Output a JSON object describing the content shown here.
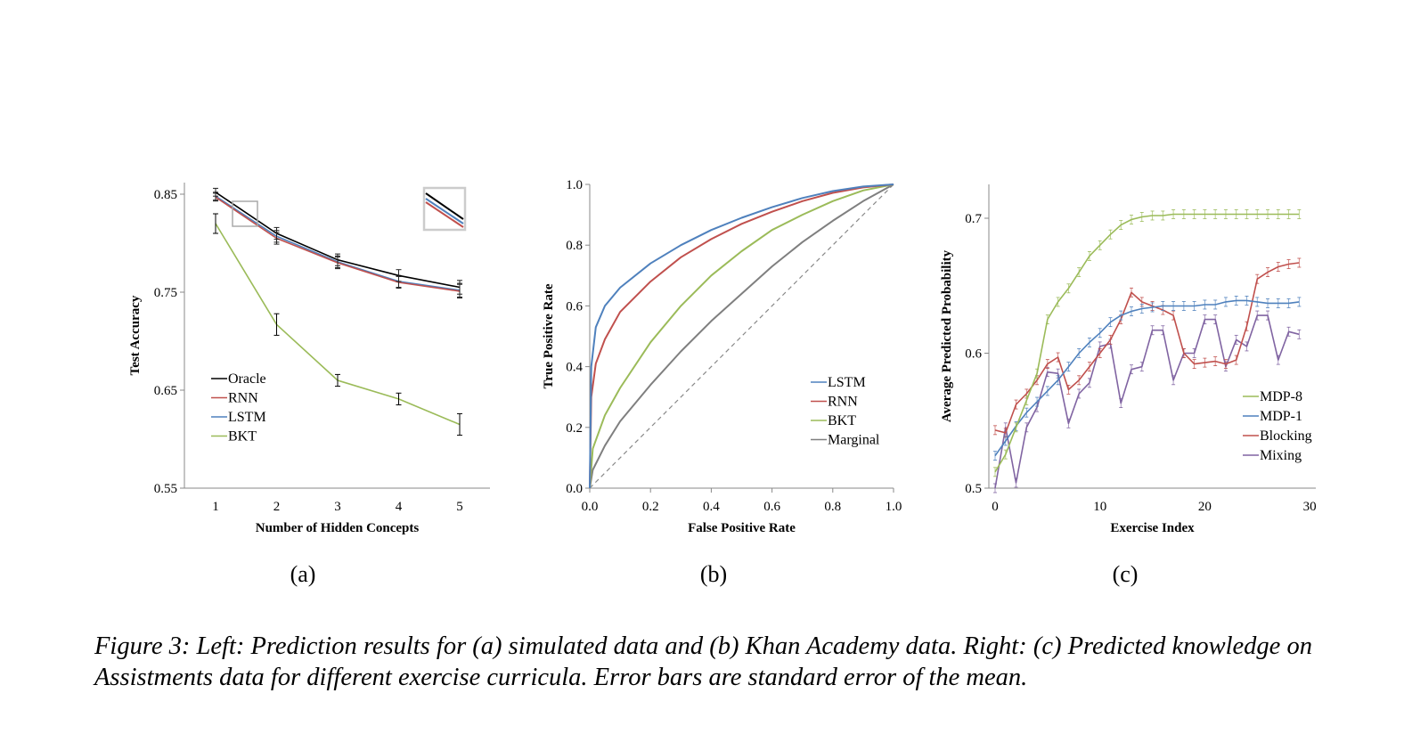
{
  "caption": "Figure 3: Left: Prediction results for (a) simulated data and (b) Khan Academy data. Right: (c) Predicted knowledge on Assistments data for different exercise curricula. Error bars are standard error of the mean.",
  "colors": {
    "Oracle": "#000000",
    "RNN": "#c0504d",
    "LSTM": "#4f81bd",
    "BKT": "#9bbb59",
    "Marginal": "#7f7f7f",
    "MDP-8": "#9bbb59",
    "MDP-1": "#4f81bd",
    "Blocking": "#c0504d",
    "Mixing": "#8064a2"
  },
  "chart_data": [
    {
      "type": "line",
      "panel_label": "(a)",
      "xlabel": "Number of Hidden Concepts",
      "ylabel": "Test Accuracy",
      "x": [
        1,
        2,
        3,
        4,
        5
      ],
      "xticks": [
        "1",
        "2",
        "3",
        "4",
        "5"
      ],
      "yticks": [
        "0.55",
        "0.65",
        "0.75",
        "0.85"
      ],
      "ylim": [
        0.55,
        0.86
      ],
      "legend_position": "bottom-left",
      "series": [
        {
          "name": "Oracle",
          "values": [
            0.852,
            0.81,
            0.783,
            0.767,
            0.755
          ],
          "err": [
            0.004,
            0.006,
            0.006,
            0.006,
            0.007
          ]
        },
        {
          "name": "RNN",
          "values": [
            0.847,
            0.805,
            0.78,
            0.76,
            0.751
          ],
          "err": [
            0.004,
            0.006,
            0.006,
            0.006,
            0.007
          ]
        },
        {
          "name": "LSTM",
          "values": [
            0.848,
            0.807,
            0.781,
            0.761,
            0.752
          ],
          "err": [
            0.004,
            0.006,
            0.006,
            0.006,
            0.007
          ]
        },
        {
          "name": "BKT",
          "values": [
            0.82,
            0.717,
            0.66,
            0.641,
            0.615
          ],
          "err": [
            0.01,
            0.011,
            0.006,
            0.006,
            0.011
          ]
        }
      ]
    },
    {
      "type": "line",
      "panel_label": "(b)",
      "xlabel": "False Positive Rate",
      "ylabel": "True Positive Rate",
      "xticks": [
        "0.0",
        "0.2",
        "0.4",
        "0.6",
        "0.8",
        "1.0"
      ],
      "yticks": [
        "0.0",
        "0.2",
        "0.4",
        "0.6",
        "0.8",
        "1.0"
      ],
      "xlim": [
        0,
        1
      ],
      "ylim": [
        0,
        1
      ],
      "legend_position": "bottom-right",
      "series": [
        {
          "name": "LSTM",
          "x": [
            0,
            0.005,
            0.02,
            0.05,
            0.1,
            0.2,
            0.3,
            0.4,
            0.5,
            0.6,
            0.7,
            0.8,
            0.9,
            1.0
          ],
          "values": [
            0,
            0.4,
            0.53,
            0.6,
            0.66,
            0.74,
            0.8,
            0.85,
            0.89,
            0.925,
            0.955,
            0.978,
            0.993,
            1.0
          ]
        },
        {
          "name": "RNN",
          "x": [
            0,
            0.005,
            0.02,
            0.05,
            0.1,
            0.2,
            0.3,
            0.4,
            0.5,
            0.6,
            0.7,
            0.8,
            0.9,
            1.0
          ],
          "values": [
            0,
            0.3,
            0.41,
            0.49,
            0.58,
            0.68,
            0.76,
            0.82,
            0.87,
            0.91,
            0.945,
            0.972,
            0.99,
            1.0
          ]
        },
        {
          "name": "BKT",
          "x": [
            0,
            0.01,
            0.05,
            0.1,
            0.2,
            0.3,
            0.4,
            0.5,
            0.6,
            0.7,
            0.8,
            0.9,
            1.0
          ],
          "values": [
            0,
            0.13,
            0.24,
            0.33,
            0.48,
            0.6,
            0.7,
            0.78,
            0.85,
            0.9,
            0.945,
            0.98,
            1.0
          ]
        },
        {
          "name": "Marginal",
          "x": [
            0,
            0.01,
            0.05,
            0.1,
            0.2,
            0.3,
            0.4,
            0.5,
            0.6,
            0.7,
            0.8,
            0.9,
            1.0
          ],
          "values": [
            0,
            0.06,
            0.14,
            0.22,
            0.34,
            0.45,
            0.55,
            0.64,
            0.73,
            0.81,
            0.88,
            0.945,
            1.0
          ]
        },
        {
          "name": "",
          "x": [
            0,
            1
          ],
          "values": [
            0,
            1
          ],
          "dashed": true
        }
      ]
    },
    {
      "type": "line",
      "panel_label": "(c)",
      "xlabel": "Exercise Index",
      "ylabel": "Average Predicted Probability",
      "xticks": [
        "0",
        "10",
        "20",
        "30"
      ],
      "yticks": [
        "0.5",
        "0.6",
        "0.7"
      ],
      "xlim": [
        0,
        30
      ],
      "ylim": [
        0.5,
        0.725
      ],
      "legend_position": "bottom-right",
      "x": [
        0,
        1,
        2,
        3,
        4,
        5,
        6,
        7,
        8,
        9,
        10,
        11,
        12,
        13,
        14,
        15,
        16,
        17,
        18,
        19,
        20,
        21,
        22,
        23,
        24,
        25,
        26,
        27,
        28,
        29
      ],
      "series": [
        {
          "name": "MDP-8",
          "values": [
            0.512,
            0.525,
            0.545,
            0.565,
            0.585,
            0.625,
            0.638,
            0.648,
            0.66,
            0.672,
            0.68,
            0.688,
            0.695,
            0.699,
            0.701,
            0.702,
            0.702,
            0.703,
            0.703,
            0.703,
            0.703,
            0.703,
            0.703,
            0.703,
            0.703,
            0.703,
            0.703,
            0.703,
            0.703,
            0.703
          ]
        },
        {
          "name": "MDP-1",
          "values": [
            0.524,
            0.535,
            0.546,
            0.556,
            0.564,
            0.572,
            0.58,
            0.59,
            0.6,
            0.608,
            0.615,
            0.623,
            0.628,
            0.631,
            0.633,
            0.634,
            0.635,
            0.635,
            0.635,
            0.635,
            0.636,
            0.636,
            0.638,
            0.639,
            0.639,
            0.638,
            0.637,
            0.637,
            0.637,
            0.638
          ]
        },
        {
          "name": "Blocking",
          "values": [
            0.543,
            0.541,
            0.562,
            0.57,
            0.58,
            0.592,
            0.597,
            0.573,
            0.58,
            0.59,
            0.6,
            0.61,
            0.625,
            0.645,
            0.638,
            0.635,
            0.632,
            0.628,
            0.6,
            0.592,
            0.593,
            0.594,
            0.592,
            0.595,
            0.62,
            0.655,
            0.66,
            0.664,
            0.666,
            0.667
          ]
        },
        {
          "name": "Mixing",
          "values": [
            0.5,
            0.545,
            0.504,
            0.545,
            0.56,
            0.586,
            0.585,
            0.548,
            0.57,
            0.578,
            0.605,
            0.607,
            0.563,
            0.588,
            0.59,
            0.617,
            0.617,
            0.58,
            0.6,
            0.6,
            0.625,
            0.625,
            0.59,
            0.61,
            0.605,
            0.628,
            0.628,
            0.595,
            0.616,
            0.614
          ]
        }
      ]
    }
  ]
}
